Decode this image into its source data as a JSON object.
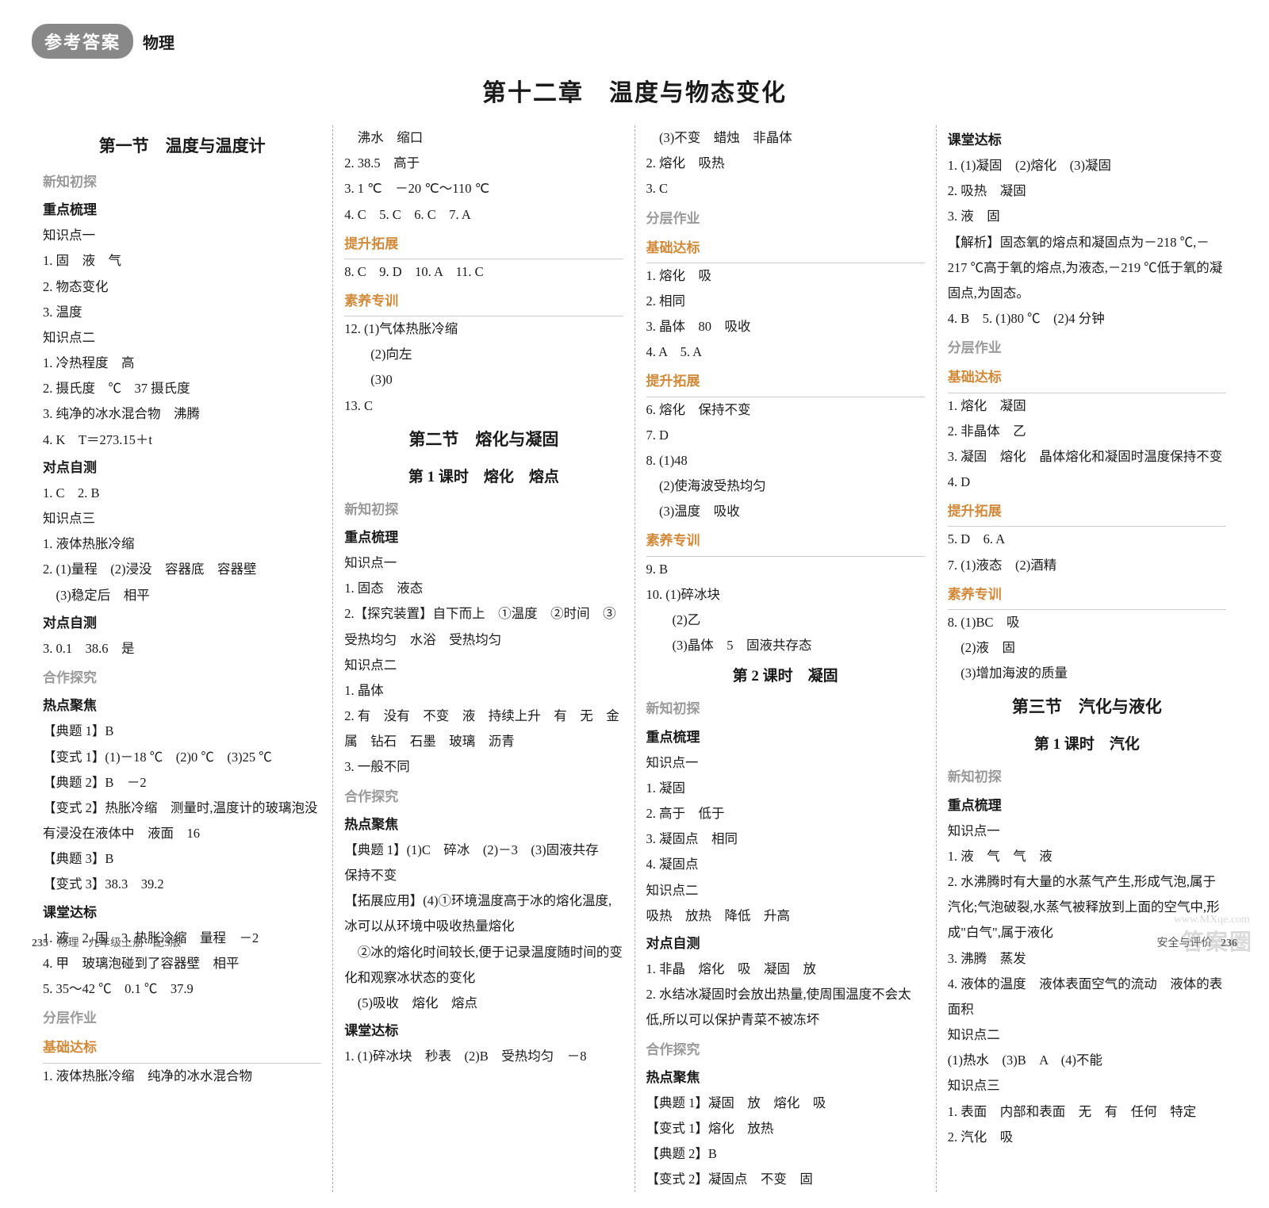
{
  "header": {
    "badge": "参考答案",
    "subject": "物理"
  },
  "chapter": "第十二章　温度与物态变化",
  "col1": {
    "section": "第一节　温度与温度计",
    "xinzhi": "新知初探",
    "zhongdian": "重点梳理",
    "zsd1": "知识点一",
    "l1": "1. 固　液　气",
    "l2": "2. 物态变化",
    "l3": "3. 温度",
    "zsd2": "知识点二",
    "l4": "1. 冷热程度　高",
    "l5": "2. 摄氏度　℃　37 摄氏度",
    "l6": "3. 纯净的冰水混合物　沸腾",
    "l7": "4. K　T＝273.15＋t",
    "ddzc1": "对点自测",
    "l8": "1. C　2. B",
    "zsd3": "知识点三",
    "l9": "1. 液体热胀冷缩",
    "l10": "2. (1)量程　(2)浸没　容器底　容器壁",
    "l11": "　(3)稳定后　相平",
    "ddzc2": "对点自测",
    "l12": "3. 0.1　38.6　是",
    "hezuo": "合作探究",
    "redian": "热点聚焦",
    "l13": "【典题 1】B",
    "l14": "【变式 1】(1)－18 ℃　(2)0 ℃　(3)25 ℃",
    "l15": "【典题 2】B　－2",
    "l16": "【变式 2】热胀冷缩　测量时,温度计的玻璃泡没有浸没在液体中　液面　16",
    "l17": "【典题 3】B",
    "l18": "【变式 3】38.3　39.2",
    "ketang": "课堂达标",
    "l19": "1. 液　2. 固　3. 热胀冷缩　量程　－2",
    "l20": "4. 甲　玻璃泡碰到了容器壁　相平",
    "l21": "5. 35～42 ℃　0.1 ℃　37.9",
    "fenceng": "分层作业",
    "jichu": "基础达标",
    "l22": "1. 液体热胀冷缩　纯净的冰水混合物"
  },
  "col2": {
    "l1": "　沸水　缩口",
    "l2": "2. 38.5　高于",
    "l3": "3. 1 ℃　－20 ℃～110 ℃",
    "l4": "4. C　5. C　6. C　7. A",
    "tisheng": "提升拓展",
    "l5": "8. C　9. D　10. A　11. C",
    "suyang": "素养专训",
    "l6": "12. (1)气体热胀冷缩",
    "l7": "　　(2)向左",
    "l8": "　　(3)0",
    "l9": "13. C",
    "section": "第二节　熔化与凝固",
    "kecheng": "第 1 课时　熔化　熔点",
    "xinzhi": "新知初探",
    "zhongdian": "重点梳理",
    "zsd1": "知识点一",
    "l10": "1. 固态　液态",
    "l11": "2.【探究装置】自下而上　①温度　②时间　③受热均匀　水浴　受热均匀",
    "zsd2": "知识点二",
    "l12": "1. 晶体",
    "l13": "2. 有　没有　不变　液　持续上升　有　无　金属　钻石　石墨　玻璃　沥青",
    "l14": "3. 一般不同",
    "hezuo": "合作探究",
    "redian": "热点聚焦",
    "l15": "【典题 1】(1)C　碎冰　(2)－3　(3)固液共存　保持不变",
    "l16": "【拓展应用】(4)①环境温度高于冰的熔化温度,冰可以从环境中吸收热量熔化",
    "l17": "　②冰的熔化时间较长,便于记录温度随时间的变化和观察冰状态的变化",
    "l18": "　(5)吸收　熔化　熔点",
    "ketang": "课堂达标",
    "l19": "1. (1)碎冰块　秒表　(2)B　受热均匀　－8"
  },
  "col3": {
    "l1": "　(3)不变　蜡烛　非晶体",
    "l2": "2. 熔化　吸热",
    "l3": "3. C",
    "fenceng": "分层作业",
    "jichu": "基础达标",
    "l4": "1. 熔化　吸",
    "l5": "2. 相同",
    "l6": "3. 晶体　80　吸收",
    "l7": "4. A　5. A",
    "tisheng": "提升拓展",
    "l8": "6. 熔化　保持不变",
    "l9": "7. D",
    "l10": "8. (1)48",
    "l11": "　(2)使海波受热均匀",
    "l12": "　(3)温度　吸收",
    "suyang": "素养专训",
    "l13": "9. B",
    "l14": "10. (1)碎冰块",
    "l15": "　　(2)乙",
    "l16": "　　(3)晶体　5　固液共存态",
    "kecheng": "第 2 课时　凝固",
    "xinzhi": "新知初探",
    "zhongdian": "重点梳理",
    "zsd1": "知识点一",
    "l17": "1. 凝固",
    "l18": "2. 高于　低于",
    "l19": "3. 凝固点　相同",
    "l20": "4. 凝固点",
    "zsd2": "知识点二",
    "l21": "吸热　放热　降低　升高",
    "ddzc": "对点自测",
    "l22": "1. 非晶　熔化　吸　凝固　放",
    "l23": "2. 水结冰凝固时会放出热量,使周围温度不会太低,所以可以保护青菜不被冻坏",
    "hezuo": "合作探究",
    "redian": "热点聚焦",
    "l24": "【典题 1】凝固　放　熔化　吸",
    "l25": "【变式 1】熔化　放热",
    "l26": "【典题 2】B",
    "l27": "【变式 2】凝固点　不变　固"
  },
  "col4": {
    "ketang": "课堂达标",
    "l1": "1. (1)凝固　(2)熔化　(3)凝固",
    "l2": "2. 吸热　凝固",
    "l3": "3. 液　固",
    "l4": "【解析】固态氧的熔点和凝固点为－218 ℃,－217 ℃高于氧的熔点,为液态,－219 ℃低于氧的凝固点,为固态。",
    "l5": "4. B　5. (1)80 ℃　(2)4 分钟",
    "fenceng": "分层作业",
    "jichu": "基础达标",
    "l6": "1. 熔化　凝固",
    "l7": "2. 非晶体　乙",
    "l8": "3. 凝固　熔化　晶体熔化和凝固时温度保持不变",
    "l9": "4. D",
    "tisheng": "提升拓展",
    "l10": "5. D　6. A",
    "l11": "7. (1)液态　(2)酒精",
    "suyang": "素养专训",
    "l12": "8. (1)BC　吸",
    "l13": "　(2)液　固",
    "l14": "　(3)增加海波的质量",
    "section": "第三节　汽化与液化",
    "kecheng": "第 1 课时　汽化",
    "xinzhi": "新知初探",
    "zhongdian": "重点梳理",
    "zsd1": "知识点一",
    "l15": "1. 液　气　气　液",
    "l16": "2. 水沸腾时有大量的水蒸气产生,形成气泡,属于汽化;气泡破裂,水蒸气被释放到上面的空气中,形成\"白气\",属于液化",
    "l17": "3. 沸腾　蒸发",
    "l18": "4. 液体的温度　液体表面空气的流动　液体的表面积",
    "zsd2": "知识点二",
    "l19": "(1)热水　(3)B　A　(4)不能",
    "zsd3": "知识点三",
    "l20": "1. 表面　内部和表面　无　有　任何　特定",
    "l21": "2. 汽化　吸"
  },
  "footer": {
    "left_page": "235",
    "left_text": "物理 · 九年级上册 · 配S版",
    "right_text": "安全与评价",
    "right_page": "236"
  },
  "watermark": {
    "main": "答案圈",
    "sub": "www.MXqe.com"
  }
}
